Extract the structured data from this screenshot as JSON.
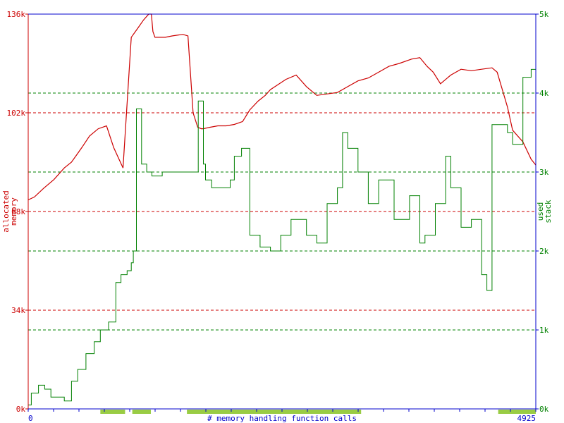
{
  "chart_data": {
    "type": "line",
    "xlabel": "# memory handling function calls",
    "ylabel_left": "allocated memory",
    "ylabel_right": "used stack",
    "x_ticks": [
      "0",
      "4925"
    ],
    "xlim": [
      0,
      4925
    ],
    "y_left": {
      "ticks": [
        "0k",
        "34k",
        "68k",
        "102k",
        "136k"
      ],
      "tick_values": [
        0,
        34,
        68,
        102,
        136
      ],
      "ylim": [
        0,
        136
      ],
      "units": "k"
    },
    "y_right": {
      "ticks": [
        "0k",
        "1k",
        "2k",
        "3k",
        "4k",
        "5k"
      ],
      "tick_values": [
        0,
        1,
        2,
        3,
        4,
        5
      ],
      "ylim": [
        0,
        5
      ],
      "units": "k"
    },
    "colors": {
      "allocated": "#cc0000",
      "stack": "#008000",
      "axis": "#0000cc",
      "marker": "#99cc44"
    },
    "grid": true,
    "series": [
      {
        "key": "allocated",
        "x": [
          0,
          60,
          150,
          250,
          350,
          420,
          480,
          520,
          595,
          680,
          760,
          830,
          920,
          1000,
          1060,
          1120,
          1170,
          1195,
          1210,
          1230,
          1260,
          1330,
          1400,
          1500,
          1550,
          1600,
          1645,
          1680,
          1700,
          1760,
          1840,
          1920,
          2000,
          2080,
          2150,
          2230,
          2300,
          2350,
          2500,
          2600,
          2700,
          2800,
          3000,
          3100,
          3200,
          3300,
          3400,
          3500,
          3600,
          3720,
          3800,
          3870,
          3930,
          4000,
          4100,
          4200,
          4300,
          4400,
          4500,
          4550,
          4600,
          4650,
          4700,
          4800,
          4880,
          4925
        ],
        "values": [
          72,
          73,
          76,
          79,
          83,
          85,
          88,
          90,
          94,
          96.5,
          97.5,
          90,
          83,
          128,
          131,
          134,
          136,
          136,
          130,
          128,
          128,
          128,
          128.5,
          129,
          128.5,
          102,
          97,
          96.5,
          96.5,
          97,
          97.5,
          97.5,
          98,
          99,
          103,
          106,
          108,
          110,
          113.5,
          115,
          111,
          108,
          109,
          111,
          113,
          114,
          116,
          118,
          119,
          120.5,
          121,
          118,
          116,
          112,
          115,
          117,
          116.5,
          117,
          117.5,
          116,
          110,
          104,
          96,
          92,
          86,
          84
        ]
      },
      {
        "key": "stack",
        "x": [
          0,
          30,
          60,
          100,
          160,
          220,
          280,
          350,
          420,
          480,
          560,
          640,
          700,
          780,
          850,
          900,
          960,
          1000,
          1020,
          1050,
          1100,
          1150,
          1200,
          1300,
          1400,
          1500,
          1600,
          1650,
          1700,
          1720,
          1780,
          1850,
          1960,
          2000,
          2070,
          2150,
          2250,
          2350,
          2450,
          2550,
          2700,
          2800,
          2900,
          3000,
          3050,
          3100,
          3200,
          3300,
          3400,
          3550,
          3700,
          3800,
          3850,
          3950,
          4050,
          4100,
          4200,
          4300,
          4400,
          4450,
          4500,
          4550,
          4650,
          4700,
          4800,
          4880,
          4925
        ],
        "values": [
          0.05,
          0.2,
          0.2,
          0.3,
          0.25,
          0.15,
          0.15,
          0.1,
          0.35,
          0.5,
          0.7,
          0.85,
          1.0,
          1.1,
          1.6,
          1.7,
          1.75,
          1.85,
          2.0,
          3.8,
          3.1,
          3.0,
          2.95,
          3.0,
          3.0,
          3.0,
          3.0,
          3.9,
          3.1,
          2.9,
          2.8,
          2.8,
          2.9,
          3.2,
          3.3,
          2.2,
          2.05,
          2.0,
          2.2,
          2.4,
          2.2,
          2.1,
          2.6,
          2.8,
          3.5,
          3.3,
          3.0,
          2.6,
          2.9,
          2.4,
          2.7,
          2.1,
          2.2,
          2.6,
          3.2,
          2.8,
          2.3,
          2.4,
          1.7,
          1.5,
          3.6,
          3.6,
          3.5,
          3.35,
          4.2,
          4.3,
          4.9
        ]
      }
    ],
    "marker_segments": [
      [
        700,
        940
      ],
      [
        1010,
        1190
      ],
      [
        1540,
        3230
      ],
      [
        4560,
        4925
      ]
    ]
  }
}
